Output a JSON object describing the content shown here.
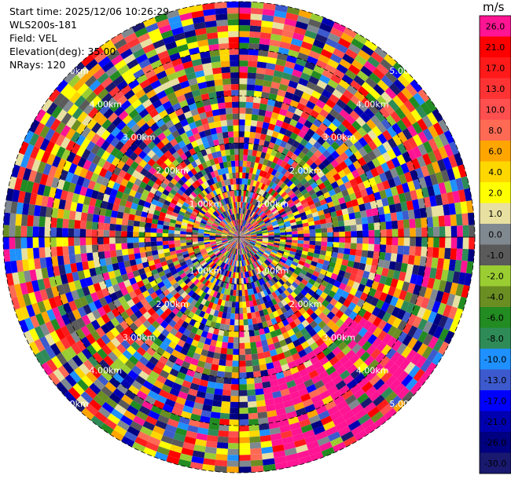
{
  "chart_data": {
    "type": "heatmap",
    "projection": "polar-ppi",
    "field": "VEL",
    "info": {
      "start_time": "Start time: 2025/12/06 10:26:29",
      "instrument": "WLS200s-181",
      "field": "Field: VEL",
      "elevation": "Elevation(deg): 35.00",
      "nrays": "NRays: 120"
    },
    "n_rays": 120,
    "n_gates": 40,
    "range_km_max": 5.0,
    "range_rings_km": [
      1,
      2,
      3,
      4,
      5
    ],
    "range_labels": [
      "1.00km",
      "2.00km",
      "3.00km",
      "4.00km",
      "5.00km"
    ],
    "colorbar": {
      "unit": "m/s",
      "levels": [
        {
          "label": "26.0",
          "value": 26.0,
          "color": "#ff1493"
        },
        {
          "label": "21.0",
          "value": 21.0,
          "color": "#ff0000"
        },
        {
          "label": "17.0",
          "value": 17.0,
          "color": "#ff1a1a"
        },
        {
          "label": "13.0",
          "value": 13.0,
          "color": "#ff3333"
        },
        {
          "label": "10.0",
          "value": 10.0,
          "color": "#ff4f4f"
        },
        {
          "label": "8.0",
          "value": 8.0,
          "color": "#ff6a55"
        },
        {
          "label": "6.0",
          "value": 6.0,
          "color": "#ffa500"
        },
        {
          "label": "4.0",
          "value": 4.0,
          "color": "#ffd700"
        },
        {
          "label": "2.0",
          "value": 2.0,
          "color": "#ffff00"
        },
        {
          "label": "1.0",
          "value": 1.0,
          "color": "#e8e0a0"
        },
        {
          "label": "0.0",
          "value": 0.0,
          "color": "#808890"
        },
        {
          "label": "-1.0",
          "value": -1.0,
          "color": "#5a5a5a"
        },
        {
          "label": "-2.0",
          "value": -2.0,
          "color": "#9acd32"
        },
        {
          "label": "-4.0",
          "value": -4.0,
          "color": "#6b8e23"
        },
        {
          "label": "-6.0",
          "value": -6.0,
          "color": "#228b22"
        },
        {
          "label": "-8.0",
          "value": -8.0,
          "color": "#2e8b57"
        },
        {
          "label": "-10.0",
          "value": -10.0,
          "color": "#1e90ff"
        },
        {
          "label": "-13.0",
          "value": -13.0,
          "color": "#3c5acd"
        },
        {
          "label": "-17.0",
          "value": -17.0,
          "color": "#0000ff"
        },
        {
          "label": "-21.0",
          "value": -21.0,
          "color": "#0000b0"
        },
        {
          "label": "-26.0",
          "value": -26.0,
          "color": "#000080"
        },
        {
          "label": "-30.0",
          "value": -30.0,
          "color": "#191970"
        }
      ]
    }
  }
}
